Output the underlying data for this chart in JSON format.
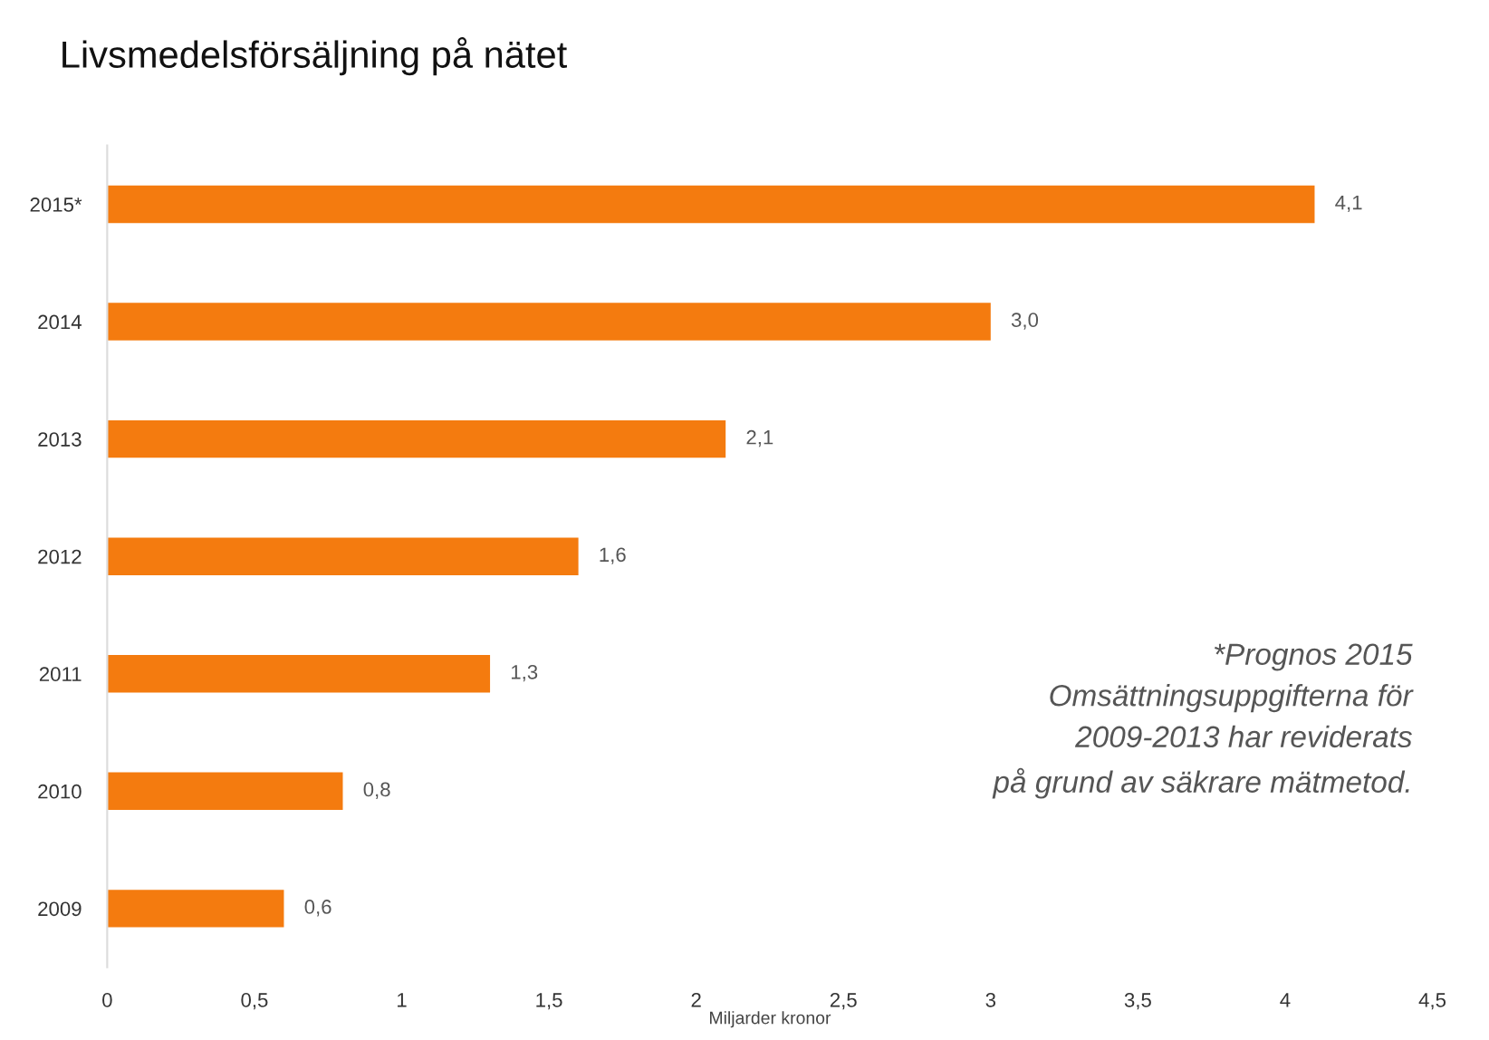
{
  "chart_data": {
    "type": "bar",
    "orientation": "horizontal",
    "title": "Livsmedelsförsäljning på nätet",
    "xlabel": "Miljarder kronor",
    "categories": [
      "2015*",
      "2014",
      "2013",
      "2012",
      "2011",
      "2010",
      "2009"
    ],
    "values": [
      4.1,
      3.0,
      2.1,
      1.6,
      1.3,
      0.8,
      0.6
    ],
    "value_labels": [
      "4,1",
      "3,0",
      "2,1",
      "1,6",
      "1,3",
      "0,8",
      "0,6"
    ],
    "color": "#f47b0f",
    "xlim": [
      0,
      4.5
    ],
    "xticks": [
      0,
      {
        "value": 0.5,
        "label": "0,5"
      },
      1,
      {
        "value": 1.5,
        "label": "1,5"
      },
      2,
      {
        "value": 2.5,
        "label": "2,5"
      },
      3,
      {
        "value": 3.5,
        "label": "3,5"
      },
      4,
      {
        "value": 4.5,
        "label": "4,5"
      }
    ],
    "grid": false,
    "annotations": [
      "*Prognos 2015\nOmsättningsuppgifterna för\n2009-2013 har reviderats\npå grund av säkrare mätmetod."
    ]
  }
}
